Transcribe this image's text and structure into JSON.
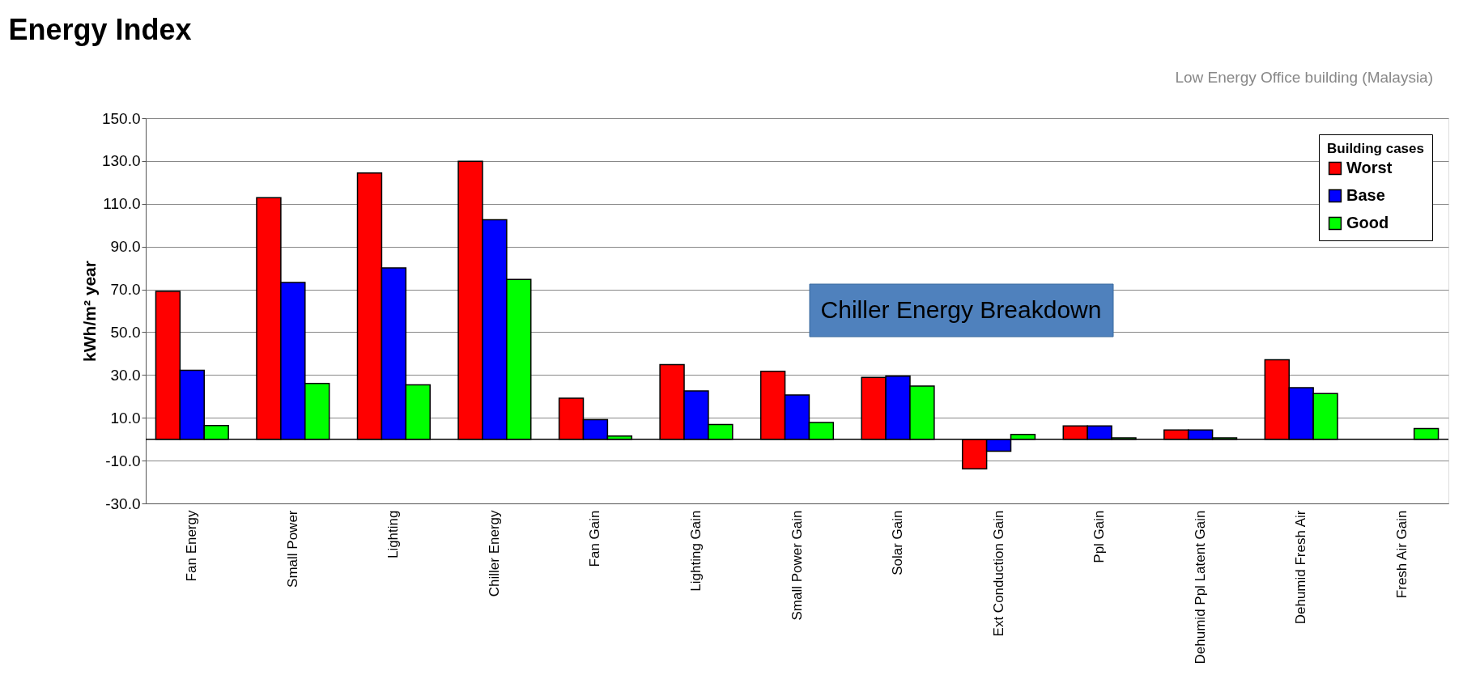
{
  "chart_data": {
    "type": "bar",
    "title": "Energy Index",
    "ylabel": "kWh/m² year",
    "legend_title": "Building cases",
    "legend": "top right",
    "grid": "y",
    "categories": [
      "Fan Energy",
      "Small Power",
      "Lighting",
      "Chiller Energy",
      "Fan Gain",
      "Lighting Gain",
      "Small Power Gain",
      "Solar Gain",
      "Ext Conduction Gain",
      "Ppl Gain",
      "Dehumid Ppl Latent Gain",
      "Dehumid Fresh Air",
      "Fresh Air Gain"
    ],
    "series": [
      {
        "name": "Worst",
        "color": "#ff0000",
        "values": [
          69.1,
          112.8,
          124.4,
          129.9,
          19.2,
          34.9,
          31.7,
          28.9,
          -13.8,
          6.2,
          4.3,
          37.1,
          null
        ]
      },
      {
        "name": "Base",
        "color": "#0000ff",
        "values": [
          32.2,
          73.2,
          80.0,
          102.5,
          9.1,
          22.6,
          20.7,
          29.5,
          -5.6,
          6.2,
          4.3,
          24.1,
          null
        ]
      },
      {
        "name": "Good",
        "color": "#00ff00",
        "values": [
          6.4,
          26.1,
          25.4,
          74.7,
          1.5,
          6.9,
          7.8,
          24.8,
          2.2,
          0.6,
          0.6,
          21.3,
          5.0
        ]
      }
    ],
    "ylim": [
      -30,
      150
    ],
    "yticks": [
      {
        "value": -30,
        "label": "-30.0"
      },
      {
        "value": -10,
        "label": "-10.0"
      },
      {
        "value": 10,
        "label": "10.0"
      },
      {
        "value": 30,
        "label": "30.0"
      },
      {
        "value": 50,
        "label": "50.0"
      },
      {
        "value": 70,
        "label": "70.0"
      },
      {
        "value": 90,
        "label": "90.0"
      },
      {
        "value": 110,
        "label": "110.0"
      },
      {
        "value": 130,
        "label": "130.0"
      },
      {
        "value": 150,
        "label": "150.0"
      }
    ],
    "ref_lines": [
      {
        "axis": "y",
        "value": 0,
        "label": null,
        "color": "#000000"
      }
    ],
    "annotations": [
      "Chiller Energy Breakdown",
      "Low Energy Office building (Malaysia)"
    ]
  }
}
